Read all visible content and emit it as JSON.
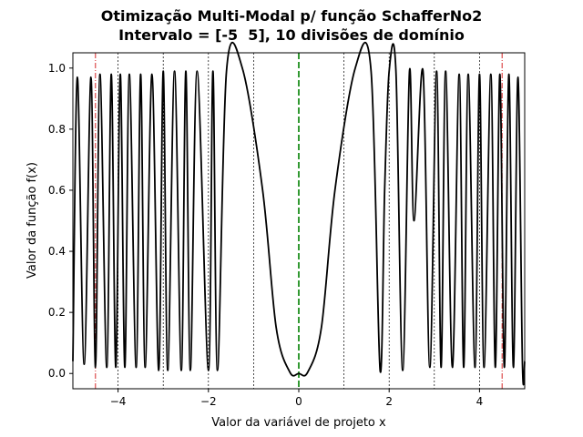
{
  "chart_data": {
    "type": "line",
    "title": "Otimização Multi-Modal p/ função SchafferNo2",
    "subtitle": "Intervalo = [-5  5], 10 divisões de domínio",
    "xlabel": "Valor da variável de projeto x",
    "ylabel": "Valor da função f(x)",
    "xlim": [
      -5,
      5
    ],
    "ylim": [
      -0.05,
      1.05
    ],
    "x_ticks": [
      -4,
      -2,
      0,
      2,
      4
    ],
    "x_tick_labels": [
      "−4",
      "−2",
      "0",
      "2",
      "4"
    ],
    "y_ticks": [
      0.0,
      0.2,
      0.4,
      0.6,
      0.8,
      1.0
    ],
    "y_tick_labels": [
      "0.0",
      "0.2",
      "0.4",
      "0.6",
      "0.8",
      "1.0"
    ],
    "grid": false,
    "legend": "none",
    "series": [
      {
        "function": "SchafferNo2 (1-D)",
        "x": [
          -5.0,
          -4.9,
          -4.75,
          -4.6,
          -4.5,
          -4.4,
          -4.25,
          -4.15,
          -4.05,
          -3.95,
          -3.85,
          -3.75,
          -3.6,
          -3.5,
          -3.4,
          -3.25,
          -3.1,
          -3.0,
          -2.9,
          -2.75,
          -2.6,
          -2.5,
          -2.4,
          -2.25,
          -2.0,
          -1.9,
          -1.8,
          -1.6,
          -1.25,
          -0.8,
          -0.5,
          -0.2,
          0.0,
          0.2,
          0.5,
          0.8,
          1.25,
          1.6,
          1.8,
          1.9,
          2.0,
          2.15,
          2.3,
          2.45,
          2.55,
          2.75,
          2.9,
          3.05,
          3.15,
          3.25,
          3.4,
          3.55,
          3.65,
          3.75,
          3.9,
          4.0,
          4.1,
          4.25,
          4.35,
          4.45,
          4.55,
          4.65,
          4.75,
          4.85,
          4.95,
          5.0
        ],
        "y": [
          0.04,
          0.97,
          0.03,
          0.97,
          0.02,
          0.98,
          0.02,
          0.98,
          0.02,
          0.98,
          0.02,
          0.98,
          0.02,
          0.98,
          0.02,
          0.98,
          0.01,
          0.99,
          0.01,
          0.99,
          0.01,
          0.99,
          0.01,
          0.99,
          0.01,
          0.99,
          0.01,
          0.99,
          1.0,
          0.6,
          0.15,
          0.005,
          0.0,
          0.005,
          0.15,
          0.6,
          1.0,
          0.99,
          0.01,
          0.6,
          0.99,
          0.99,
          0.01,
          0.99,
          0.5,
          0.99,
          0.02,
          0.99,
          0.02,
          0.99,
          0.02,
          0.98,
          0.02,
          0.98,
          0.02,
          0.98,
          0.02,
          0.98,
          0.02,
          0.98,
          0.02,
          0.98,
          0.02,
          0.97,
          0.03,
          0.04
        ],
        "color": "#000000"
      }
    ],
    "division_lines": [
      -4,
      -3,
      -2,
      -1,
      1,
      2,
      3,
      4
    ],
    "division_line_color": "#000000",
    "optimum_line": 0,
    "optimum_line_color": "#008000",
    "boundary_lines": [
      -4.5,
      4.5
    ],
    "boundary_line_color": "#d62728"
  }
}
